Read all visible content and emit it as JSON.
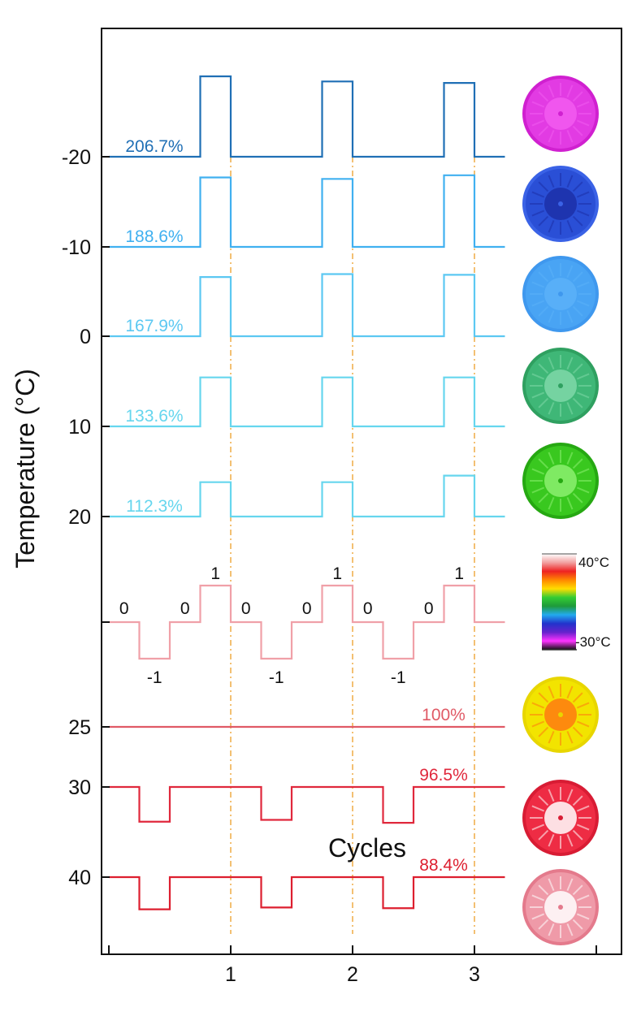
{
  "chart_data": {
    "type": "line",
    "xlabel": "Cycles",
    "ylabel": "Temperature (°C)",
    "x_ticks": [
      "1",
      "2",
      "3"
    ],
    "y_tick_labels": [
      "-20",
      "-10",
      "0",
      "10",
      "20",
      "",
      "25",
      "30",
      "40"
    ],
    "grid": false,
    "cycle_guides": [
      1,
      2,
      3
    ],
    "x_points": [
      0,
      0.25,
      0.5,
      0.75,
      1,
      1.25,
      1.5,
      1.75,
      2,
      2.25,
      2.5,
      2.75,
      3,
      3.25
    ],
    "series": [
      {
        "color": "#1f6fb5",
        "annotation": "206.7%",
        "base_temperature": "-20",
        "values": [
          0,
          0,
          0,
          1.1,
          0,
          0,
          0,
          1.03,
          0,
          0,
          0,
          1.01,
          0,
          0
        ]
      },
      {
        "color": "#40b0f0",
        "annotation": "188.6%",
        "base_temperature": "-10",
        "values": [
          0,
          0,
          0,
          0.95,
          0,
          0,
          0,
          0.93,
          0,
          0,
          0,
          0.98,
          0,
          0
        ]
      },
      {
        "color": "#5cc8f2",
        "annotation": "167.9%",
        "base_temperature": "0",
        "values": [
          0,
          0,
          0,
          0.81,
          0,
          0,
          0,
          0.85,
          0,
          0,
          0,
          0.84,
          0,
          0
        ]
      },
      {
        "color": "#66d6ee",
        "annotation": "133.6%",
        "base_temperature": "10",
        "values": [
          0,
          0,
          0,
          0.67,
          0,
          0,
          0,
          0.67,
          0,
          0,
          0,
          0.67,
          0,
          0
        ]
      },
      {
        "color": "#66d6ee",
        "annotation": "112.3%",
        "base_temperature": "20",
        "values": [
          0,
          0,
          0,
          0.47,
          0,
          0,
          0,
          0.47,
          0,
          0,
          0,
          0.56,
          0,
          0
        ]
      },
      {
        "color": "#f0a0a8",
        "annotation": "",
        "base_temperature": "",
        "values": [
          0,
          -1,
          0,
          1,
          0,
          -1,
          0,
          1,
          0,
          -1,
          0,
          1,
          0,
          0
        ],
        "state_labels": [
          "0",
          "-1",
          "0",
          "1",
          "0",
          "-1",
          "0",
          "1",
          "0",
          "-1",
          "0",
          "1"
        ]
      },
      {
        "color": "#e05a66",
        "annotation": "100%",
        "base_temperature": "25",
        "values": [
          0,
          0,
          0,
          0,
          0,
          0,
          0,
          0,
          0,
          0,
          0,
          0,
          0,
          0
        ]
      },
      {
        "color": "#e0283c",
        "annotation": "96.5%",
        "base_temperature": "30",
        "values": [
          0,
          -0.95,
          0,
          0,
          0,
          -0.9,
          0,
          0,
          0,
          -0.98,
          0,
          0,
          0,
          0
        ]
      },
      {
        "color": "#dd1f2f",
        "annotation": "88.4%",
        "base_temperature": "40",
        "values": [
          0,
          -0.88,
          0,
          0,
          0,
          -0.83,
          0,
          0,
          0,
          -0.85,
          0,
          0,
          0,
          0
        ]
      }
    ],
    "colorbar": {
      "max_label": "40°C",
      "min_label": "-30°C",
      "colors": [
        "#ffffff",
        "#f2a0a0",
        "#ee2222",
        "#ff8800",
        "#ffdd00",
        "#33cc33",
        "#1f9a3a",
        "#22aaee",
        "#2233cc",
        "#6622cc",
        "#ff33ff",
        "#111111"
      ]
    },
    "sample_images": [
      {
        "kind": "disc",
        "outer": "#e23be3",
        "inner": "#f25cf0",
        "rim": "#d020d0"
      },
      {
        "kind": "disc",
        "outer": "#2a4fd6",
        "inner": "#1c2fa8",
        "rim": "#3a62e6"
      },
      {
        "kind": "disc",
        "outer": "#49a4f4",
        "inner": "#5ab2f8",
        "rim": "#3f98ee"
      },
      {
        "kind": "disc",
        "outer": "#3fb777",
        "inner": "#7fd8a8",
        "rim": "#2fa060"
      },
      {
        "kind": "disc",
        "outer": "#39c81f",
        "inner": "#8cf070",
        "rim": "#26a812"
      },
      {
        "kind": "colorbar"
      },
      {
        "kind": "disc",
        "outer": "#f2e400",
        "inner": "#ff7a10",
        "rim": "#e8d600"
      },
      {
        "kind": "disc",
        "outer": "#ee2c44",
        "inner": "#ffffff",
        "rim": "#d81c34"
      },
      {
        "kind": "disc",
        "outer": "#ef9aa8",
        "inner": "#ffffff",
        "rim": "#e47a8c"
      }
    ]
  }
}
